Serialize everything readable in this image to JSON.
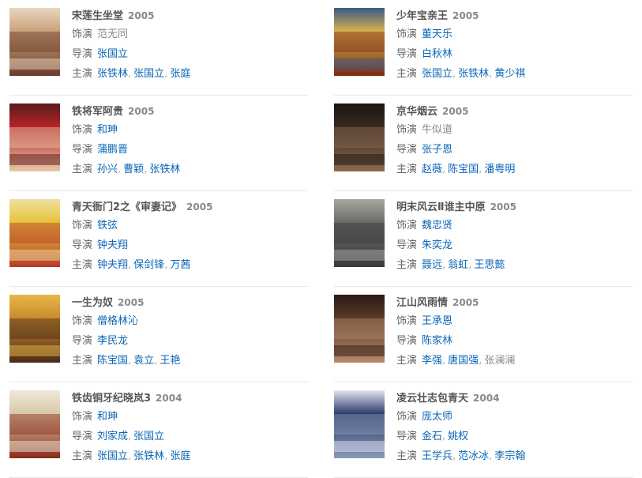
{
  "labels": {
    "role": "饰演",
    "director": "导演",
    "cast": "主演"
  },
  "items": [
    {
      "title": "宋莲生坐堂",
      "year": "2005",
      "role": [
        {
          "n": "范无同",
          "link": false
        }
      ],
      "director": [
        {
          "n": "张国立",
          "link": true
        }
      ],
      "cast": [
        {
          "n": "张铁林",
          "link": true
        },
        {
          "n": "张国立",
          "link": true
        },
        {
          "n": "张庭",
          "link": true
        }
      ],
      "colors": [
        "#c9a27a",
        "#6b3b2a",
        "#e8d6c0"
      ]
    },
    {
      "title": "少年宝亲王",
      "year": "2005",
      "role": [
        {
          "n": "董天乐",
          "link": true
        }
      ],
      "director": [
        {
          "n": "白秋林",
          "link": true
        }
      ],
      "cast": [
        {
          "n": "张国立",
          "link": true
        },
        {
          "n": "张铁林",
          "link": true
        },
        {
          "n": "黄少祺",
          "link": true
        }
      ],
      "colors": [
        "#d9b24a",
        "#7a2a1a",
        "#3a5a8a"
      ]
    },
    {
      "title": "铁将军阿贵",
      "year": "2005",
      "role": [
        {
          "n": "和珅",
          "link": true
        }
      ],
      "director": [
        {
          "n": "蒲鹏晋",
          "link": true
        }
      ],
      "cast": [
        {
          "n": "孙兴",
          "link": true
        },
        {
          "n": "曹颖",
          "link": true
        },
        {
          "n": "张铁林",
          "link": true
        }
      ],
      "colors": [
        "#b8232a",
        "#e6c9a8",
        "#5a1a1a"
      ]
    },
    {
      "title": "京华烟云",
      "year": "2005",
      "role": [
        {
          "n": "牛似道",
          "link": false
        }
      ],
      "director": [
        {
          "n": "张子恩",
          "link": true
        }
      ],
      "cast": [
        {
          "n": "赵薇",
          "link": true
        },
        {
          "n": "陈宝国",
          "link": true
        },
        {
          "n": "潘粤明",
          "link": true
        }
      ],
      "colors": [
        "#3a2a22",
        "#8a6a50",
        "#1a1410"
      ]
    },
    {
      "title": "青天衙门2之《审妻记》",
      "year": "2005",
      "role": [
        {
          "n": "铁弦",
          "link": true
        }
      ],
      "director": [
        {
          "n": "钟夫翔",
          "link": true
        }
      ],
      "cast": [
        {
          "n": "钟夫翔",
          "link": true
        },
        {
          "n": "保剑锋",
          "link": true
        },
        {
          "n": "万茜",
          "link": true
        }
      ],
      "colors": [
        "#e6c23a",
        "#b83a2a",
        "#f0e0a0"
      ]
    },
    {
      "title": "明末风云Ⅱ谁主中原",
      "year": "2005",
      "role": [
        {
          "n": "魏忠贤",
          "link": true
        }
      ],
      "director": [
        {
          "n": "朱奕龙",
          "link": true
        }
      ],
      "cast": [
        {
          "n": "聂远",
          "link": true
        },
        {
          "n": "翁虹",
          "link": true
        },
        {
          "n": "王思懿",
          "link": true
        }
      ],
      "colors": [
        "#6a6a6a",
        "#3a3a3a",
        "#a8a8a0"
      ]
    },
    {
      "title": "一生为奴",
      "year": "2005",
      "role": [
        {
          "n": "僧格林沁",
          "link": true
        }
      ],
      "director": [
        {
          "n": "李民龙",
          "link": true
        }
      ],
      "cast": [
        {
          "n": "陈宝国",
          "link": true
        },
        {
          "n": "袁立",
          "link": true
        },
        {
          "n": "王艳",
          "link": true
        }
      ],
      "colors": [
        "#c88a2a",
        "#4a2a1a",
        "#e8b84a"
      ]
    },
    {
      "title": "江山风雨情",
      "year": "2005",
      "role": [
        {
          "n": "王承恩",
          "link": true
        }
      ],
      "director": [
        {
          "n": "陈家林",
          "link": true
        }
      ],
      "cast": [
        {
          "n": "李强",
          "link": true
        },
        {
          "n": "唐国强",
          "link": true
        },
        {
          "n": "张澜澜",
          "link": false
        }
      ],
      "colors": [
        "#5a3a2a",
        "#b88a6a",
        "#2a1a14"
      ]
    },
    {
      "title": "铁齿铜牙纪晓岚3",
      "year": "2004",
      "role": [
        {
          "n": "和珅",
          "link": true
        }
      ],
      "director": [
        {
          "n": "刘家成",
          "link": true
        },
        {
          "n": "张国立",
          "link": true
        }
      ],
      "cast": [
        {
          "n": "张国立",
          "link": true
        },
        {
          "n": "张铁林",
          "link": true
        },
        {
          "n": "张庭",
          "link": true
        }
      ],
      "colors": [
        "#d8c8a8",
        "#8a2a1a",
        "#f0e8d8"
      ]
    },
    {
      "title": "凌云壮志包青天",
      "year": "2004",
      "role": [
        {
          "n": "庞太师",
          "link": true
        }
      ],
      "director": [
        {
          "n": "金石",
          "link": true
        },
        {
          "n": "姚权",
          "link": true
        }
      ],
      "cast": [
        {
          "n": "王学兵",
          "link": true
        },
        {
          "n": "范冰冰",
          "link": true
        },
        {
          "n": "李宗翰",
          "link": true
        }
      ],
      "colors": [
        "#2a3a6a",
        "#8a9ab8",
        "#e0e4f0"
      ]
    }
  ]
}
